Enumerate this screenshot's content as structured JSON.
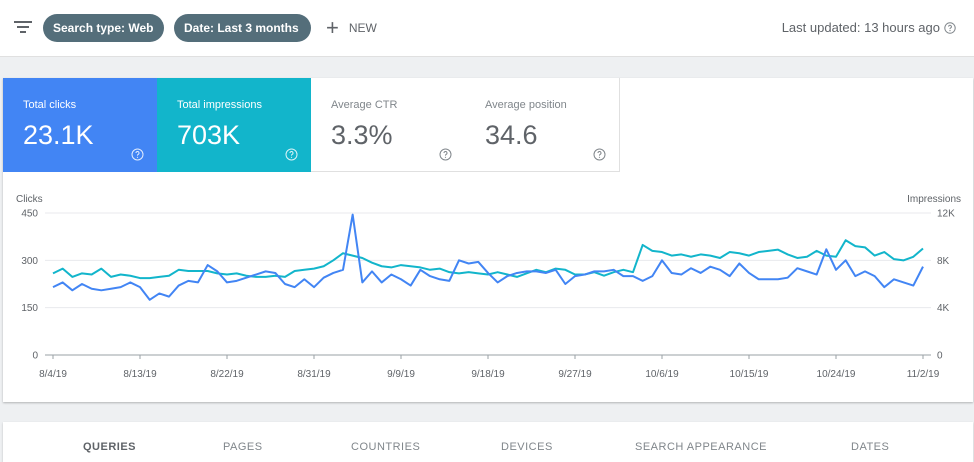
{
  "toolbar": {
    "chips": [
      {
        "label": "Search type: Web"
      },
      {
        "label": "Date: Last 3 months"
      }
    ],
    "new_label": "NEW",
    "last_updated": "Last updated: 13 hours ago"
  },
  "metrics": [
    {
      "title": "Total clicks",
      "value": "23.1K"
    },
    {
      "title": "Total impressions",
      "value": "703K"
    },
    {
      "title": "Average CTR",
      "value": "3.3%"
    },
    {
      "title": "Average position",
      "value": "34.6"
    }
  ],
  "colors": {
    "clicks": "#4285f4",
    "impressions": "#12b5cb"
  },
  "chart_data": {
    "type": "line",
    "ylabel_left": "Clicks",
    "ylabel_right": "Impressions",
    "left_ticks": [
      "0",
      "150",
      "300",
      "450"
    ],
    "right_ticks": [
      "0",
      "4K",
      "8K",
      "12K"
    ],
    "ylim_left": [
      0,
      450
    ],
    "ylim_right": [
      0,
      12000
    ],
    "x_ticks": [
      "8/4/19",
      "8/13/19",
      "8/22/19",
      "8/31/19",
      "9/9/19",
      "9/18/19",
      "9/27/19",
      "10/6/19",
      "10/15/19",
      "10/24/19",
      "11/2/19"
    ],
    "x_tick_days": [
      0,
      9,
      18,
      27,
      36,
      45,
      54,
      63,
      72,
      81,
      90
    ],
    "grid": true,
    "series": [
      {
        "name": "Clicks",
        "axis": "left",
        "values": [
          215,
          230,
          205,
          225,
          210,
          205,
          210,
          215,
          230,
          215,
          175,
          195,
          185,
          220,
          235,
          230,
          285,
          265,
          230,
          235,
          245,
          255,
          265,
          260,
          225,
          215,
          240,
          215,
          245,
          260,
          270,
          445,
          230,
          265,
          230,
          255,
          240,
          220,
          270,
          250,
          240,
          235,
          300,
          290,
          295,
          260,
          230,
          250,
          260,
          265,
          265,
          260,
          270,
          225,
          250,
          255,
          265,
          265,
          270,
          250,
          250,
          235,
          250,
          300,
          260,
          255,
          275,
          260,
          280,
          270,
          250,
          290,
          260,
          240,
          240,
          240,
          245,
          275,
          265,
          255,
          335,
          270,
          300,
          250,
          265,
          250,
          215,
          240,
          230,
          220,
          280
        ]
      },
      {
        "name": "Impressions",
        "axis": "right",
        "values": [
          6900,
          7300,
          6600,
          6900,
          6800,
          7300,
          6600,
          6800,
          6700,
          6500,
          6500,
          6600,
          6700,
          7200,
          7100,
          7100,
          7100,
          6900,
          6800,
          6900,
          6700,
          6600,
          6600,
          6700,
          6600,
          7100,
          7200,
          7300,
          7500,
          8000,
          8600,
          8400,
          8200,
          7800,
          7500,
          7400,
          7600,
          7500,
          7400,
          7200,
          7300,
          7000,
          6900,
          7000,
          6900,
          6800,
          7000,
          6800,
          6600,
          6900,
          7200,
          7000,
          7300,
          7200,
          6800,
          6800,
          7000,
          6700,
          7000,
          7200,
          7000,
          9300,
          8800,
          8700,
          8400,
          8500,
          8300,
          8500,
          8400,
          8200,
          8700,
          8600,
          8400,
          8700,
          8800,
          8900,
          8500,
          8200,
          8300,
          8800,
          8400,
          8300,
          9700,
          9200,
          9100,
          8400,
          8700,
          8100,
          8000,
          8300,
          9000
        ]
      }
    ]
  },
  "tabs": [
    {
      "label": "QUERIES"
    },
    {
      "label": "PAGES"
    },
    {
      "label": "COUNTRIES"
    },
    {
      "label": "DEVICES"
    },
    {
      "label": "SEARCH APPEARANCE"
    },
    {
      "label": "DATES"
    }
  ]
}
